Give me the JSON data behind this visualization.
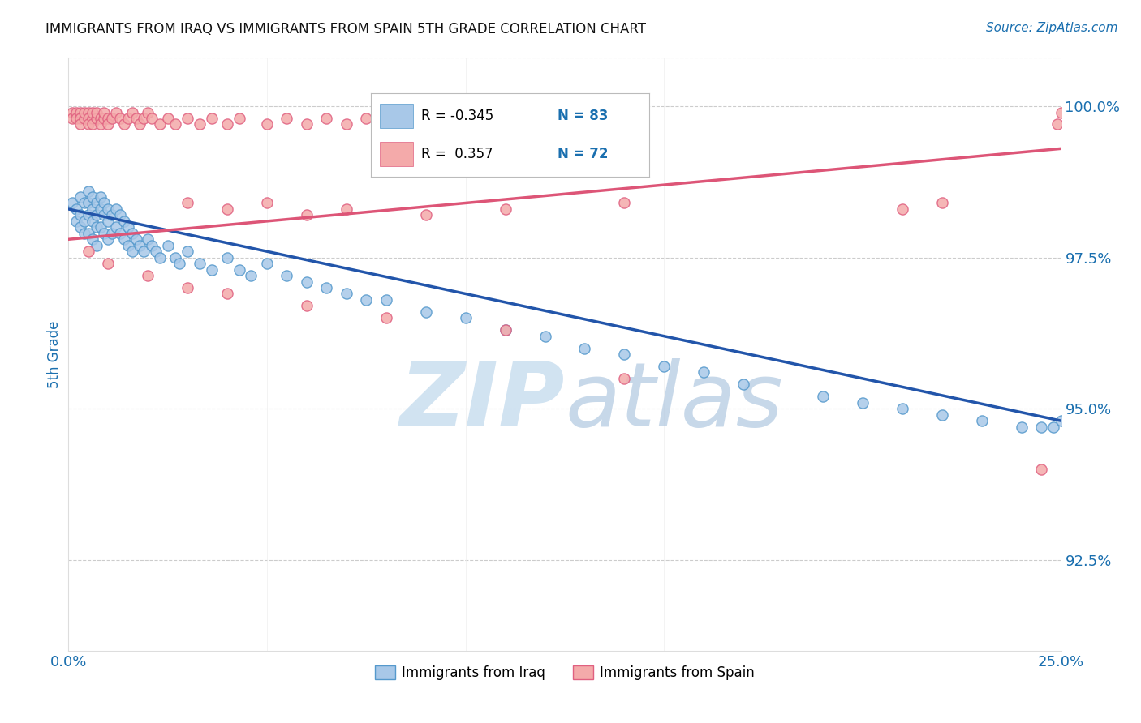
{
  "title": "IMMIGRANTS FROM IRAQ VS IMMIGRANTS FROM SPAIN 5TH GRADE CORRELATION CHART",
  "source": "Source: ZipAtlas.com",
  "ylabel": "5th Grade",
  "ytick_labels": [
    "92.5%",
    "95.0%",
    "97.5%",
    "100.0%"
  ],
  "ytick_values": [
    0.925,
    0.95,
    0.975,
    1.0
  ],
  "xmin": 0.0,
  "xmax": 0.25,
  "ymin": 0.91,
  "ymax": 1.008,
  "legend_r_iraq": "-0.345",
  "legend_n_iraq": "83",
  "legend_r_spain": "0.357",
  "legend_n_spain": "72",
  "color_iraq_fill": "#a8c8e8",
  "color_iraq_edge": "#5599cc",
  "color_spain_fill": "#f4aaaa",
  "color_spain_edge": "#e06080",
  "color_iraq_line": "#2255aa",
  "color_spain_line": "#dd5577",
  "color_blue": "#1a6faf",
  "color_title": "#111111",
  "watermark_color": "#cce0f0",
  "iraq_line_x0": 0.0,
  "iraq_line_x1": 0.25,
  "iraq_line_y0": 0.983,
  "iraq_line_y1": 0.948,
  "spain_line_x0": 0.0,
  "spain_line_x1": 0.25,
  "spain_line_y0": 0.978,
  "spain_line_y1": 0.993,
  "iraq_x": [
    0.001,
    0.002,
    0.002,
    0.003,
    0.003,
    0.003,
    0.004,
    0.004,
    0.004,
    0.005,
    0.005,
    0.005,
    0.005,
    0.006,
    0.006,
    0.006,
    0.006,
    0.007,
    0.007,
    0.007,
    0.007,
    0.008,
    0.008,
    0.008,
    0.009,
    0.009,
    0.009,
    0.01,
    0.01,
    0.01,
    0.011,
    0.011,
    0.012,
    0.012,
    0.013,
    0.013,
    0.014,
    0.014,
    0.015,
    0.015,
    0.016,
    0.016,
    0.017,
    0.018,
    0.019,
    0.02,
    0.021,
    0.022,
    0.023,
    0.025,
    0.027,
    0.028,
    0.03,
    0.033,
    0.036,
    0.04,
    0.043,
    0.046,
    0.05,
    0.055,
    0.06,
    0.065,
    0.07,
    0.075,
    0.08,
    0.09,
    0.1,
    0.11,
    0.12,
    0.13,
    0.14,
    0.15,
    0.16,
    0.17,
    0.19,
    0.2,
    0.21,
    0.22,
    0.23,
    0.24,
    0.245,
    0.248,
    0.25
  ],
  "iraq_y": [
    0.984,
    0.983,
    0.981,
    0.985,
    0.982,
    0.98,
    0.984,
    0.981,
    0.979,
    0.986,
    0.984,
    0.982,
    0.979,
    0.985,
    0.983,
    0.981,
    0.978,
    0.984,
    0.982,
    0.98,
    0.977,
    0.985,
    0.983,
    0.98,
    0.984,
    0.982,
    0.979,
    0.983,
    0.981,
    0.978,
    0.982,
    0.979,
    0.983,
    0.98,
    0.982,
    0.979,
    0.981,
    0.978,
    0.98,
    0.977,
    0.979,
    0.976,
    0.978,
    0.977,
    0.976,
    0.978,
    0.977,
    0.976,
    0.975,
    0.977,
    0.975,
    0.974,
    0.976,
    0.974,
    0.973,
    0.975,
    0.973,
    0.972,
    0.974,
    0.972,
    0.971,
    0.97,
    0.969,
    0.968,
    0.968,
    0.966,
    0.965,
    0.963,
    0.962,
    0.96,
    0.959,
    0.957,
    0.956,
    0.954,
    0.952,
    0.951,
    0.95,
    0.949,
    0.948,
    0.947,
    0.947,
    0.947,
    0.948
  ],
  "spain_x": [
    0.001,
    0.001,
    0.002,
    0.002,
    0.003,
    0.003,
    0.003,
    0.004,
    0.004,
    0.005,
    0.005,
    0.005,
    0.006,
    0.006,
    0.006,
    0.007,
    0.007,
    0.008,
    0.008,
    0.009,
    0.009,
    0.01,
    0.01,
    0.011,
    0.012,
    0.013,
    0.014,
    0.015,
    0.016,
    0.017,
    0.018,
    0.019,
    0.02,
    0.021,
    0.023,
    0.025,
    0.027,
    0.03,
    0.033,
    0.036,
    0.04,
    0.043,
    0.05,
    0.055,
    0.06,
    0.065,
    0.07,
    0.075,
    0.08,
    0.09,
    0.03,
    0.04,
    0.05,
    0.06,
    0.07,
    0.09,
    0.11,
    0.14,
    0.21,
    0.22,
    0.005,
    0.01,
    0.02,
    0.03,
    0.04,
    0.06,
    0.08,
    0.11,
    0.14,
    0.245,
    0.25,
    0.249
  ],
  "spain_y": [
    0.999,
    0.998,
    0.999,
    0.998,
    0.999,
    0.998,
    0.997,
    0.998,
    0.999,
    0.999,
    0.998,
    0.997,
    0.998,
    0.999,
    0.997,
    0.998,
    0.999,
    0.998,
    0.997,
    0.998,
    0.999,
    0.998,
    0.997,
    0.998,
    0.999,
    0.998,
    0.997,
    0.998,
    0.999,
    0.998,
    0.997,
    0.998,
    0.999,
    0.998,
    0.997,
    0.998,
    0.997,
    0.998,
    0.997,
    0.998,
    0.997,
    0.998,
    0.997,
    0.998,
    0.997,
    0.998,
    0.997,
    0.998,
    0.997,
    0.998,
    0.984,
    0.983,
    0.984,
    0.982,
    0.983,
    0.982,
    0.983,
    0.984,
    0.983,
    0.984,
    0.976,
    0.974,
    0.972,
    0.97,
    0.969,
    0.967,
    0.965,
    0.963,
    0.955,
    0.94,
    0.999,
    0.997
  ]
}
